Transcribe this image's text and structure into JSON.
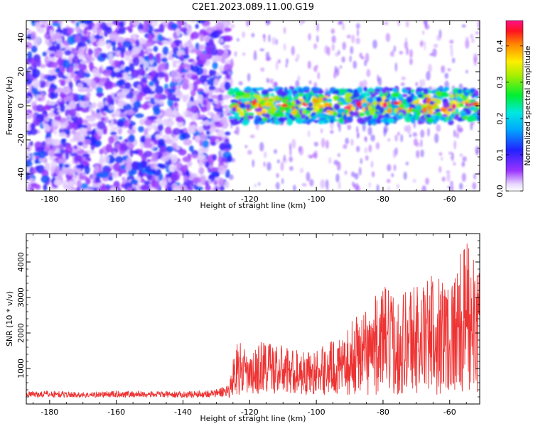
{
  "figure": {
    "title": "C2E1.2023.089.11.00.G19"
  },
  "chart_data": [
    {
      "type": "heatmap",
      "xlabel": "Height of straight line (km)",
      "ylabel": "Frequency (Hz)",
      "xlim": [
        -187,
        -51
      ],
      "ylim": [
        -50,
        50
      ],
      "xticks": [
        -180,
        -160,
        -140,
        -120,
        -100,
        -80,
        -60
      ],
      "yticks": [
        -40,
        -20,
        0,
        20,
        40
      ],
      "grid": false,
      "description_of_values": "Spectral amplitude: broadband noise (~0.05-0.15) over all frequencies for heights < -126 km; concentrated signal band around 0 Hz (+/-10 Hz) with amplitudes up to ~0.45 for heights > -126 km; sparse vertical streaks above -126 km.",
      "signal_band": {
        "x_start": -126,
        "x_end": -51,
        "freq_center": 0,
        "freq_halfwidth": 10,
        "max_amplitude": 0.45
      },
      "colorbar": {
        "label": "Normalized spectral amplitude",
        "range": [
          0.0,
          0.47
        ],
        "ticks": [
          0.0,
          0.1,
          0.2,
          0.3,
          0.4
        ],
        "colormap": "rainbow (white-violet-blue-cyan-green-yellow-red-magenta)"
      }
    },
    {
      "type": "line",
      "xlabel": "Height of straight line (km)",
      "ylabel": "SNR (10 * v/v)",
      "xlim": [
        -187,
        -51
      ],
      "ylim": [
        0,
        4800
      ],
      "xticks": [
        -180,
        -160,
        -140,
        -120,
        -100,
        -80,
        -60
      ],
      "yticks": [
        1000,
        2000,
        3000,
        4000
      ],
      "grid": false,
      "series": [
        {
          "color": "#ee3333",
          "x": [
            -187,
            -180,
            -170,
            -160,
            -150,
            -140,
            -130,
            -126,
            -124,
            -120,
            -116,
            -112,
            -108,
            -104,
            -100,
            -96,
            -92,
            -88,
            -84,
            -80,
            -76,
            -72,
            -68,
            -64,
            -60,
            -56,
            -54,
            -52
          ],
          "y": [
            350,
            380,
            330,
            380,
            360,
            350,
            420,
            600,
            1900,
            1300,
            1900,
            1700,
            1600,
            1500,
            1500,
            1800,
            1800,
            2600,
            2800,
            3400,
            3000,
            3500,
            3400,
            3800,
            3600,
            4400,
            4800,
            3700
          ]
        }
      ]
    }
  ]
}
